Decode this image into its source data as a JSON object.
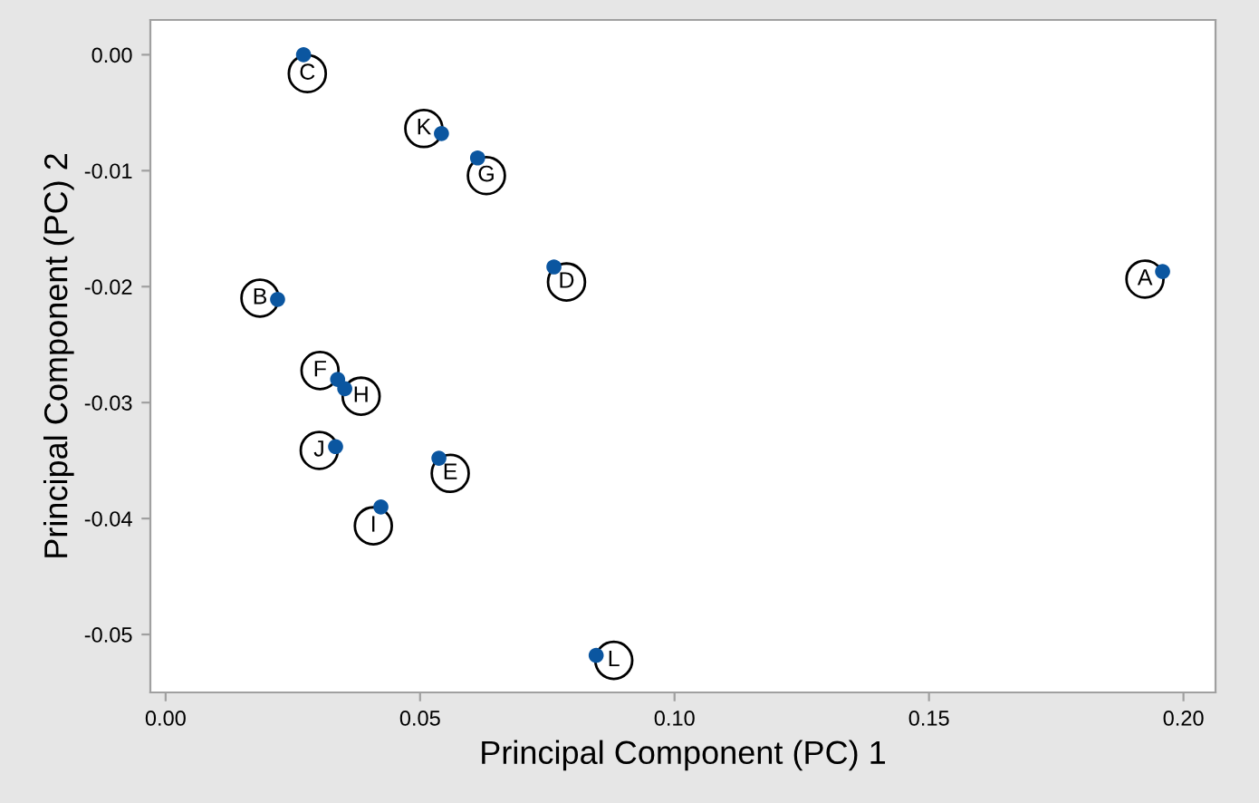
{
  "chart_data": {
    "type": "scatter",
    "xlabel": "Principal Component (PC) 1",
    "ylabel": "Principal Component (PC) 2",
    "series": [
      {
        "color": "#0b56a0",
        "x": [
          0.0271,
          0.0542,
          0.0613,
          0.0763,
          0.1959,
          0.022,
          0.0338,
          0.0352,
          0.0334,
          0.0537,
          0.0423,
          0.0846
        ],
        "values": [
          0.0,
          -0.0068,
          -0.0089,
          -0.0183,
          -0.0187,
          -0.0211,
          -0.028,
          -0.0288,
          -0.0338,
          -0.0348,
          -0.039,
          -0.0518
        ]
      }
    ],
    "annotations": [
      {
        "text": "C",
        "x": 0.0271,
        "y": 0.0
      },
      {
        "text": "K",
        "x": 0.0542,
        "y": -0.0068
      },
      {
        "text": "G",
        "x": 0.0613,
        "y": -0.0089
      },
      {
        "text": "D",
        "x": 0.0763,
        "y": -0.0183
      },
      {
        "text": "A",
        "x": 0.1959,
        "y": -0.0187
      },
      {
        "text": "B",
        "x": 0.022,
        "y": -0.0211
      },
      {
        "text": "F",
        "x": 0.0338,
        "y": -0.028
      },
      {
        "text": "H",
        "x": 0.0352,
        "y": -0.0288
      },
      {
        "text": "J",
        "x": 0.0334,
        "y": -0.0338
      },
      {
        "text": "E",
        "x": 0.0537,
        "y": -0.0348
      },
      {
        "text": "I",
        "x": 0.0423,
        "y": -0.039
      },
      {
        "text": "L",
        "x": 0.0846,
        "y": -0.0518
      }
    ],
    "xlim": [
      -0.003,
      0.2063
    ],
    "ylim": [
      -0.055,
      0.003
    ],
    "xticks": [
      {
        "value": 0,
        "label": "0.00"
      },
      {
        "value": 0.05,
        "label": "0.05"
      },
      {
        "value": 0.1,
        "label": "0.10"
      },
      {
        "value": 0.15,
        "label": "0.15"
      },
      {
        "value": 0.2,
        "label": "0.20"
      }
    ],
    "yticks": [
      {
        "value": 0,
        "label": "0.00"
      },
      {
        "value": -0.01,
        "label": "-0.01"
      },
      {
        "value": -0.02,
        "label": "-0.02"
      },
      {
        "value": -0.03,
        "label": "-0.03"
      },
      {
        "value": -0.04,
        "label": "-0.04"
      },
      {
        "value": -0.05,
        "label": "-0.05"
      }
    ],
    "grid": false,
    "marker": "circle"
  }
}
